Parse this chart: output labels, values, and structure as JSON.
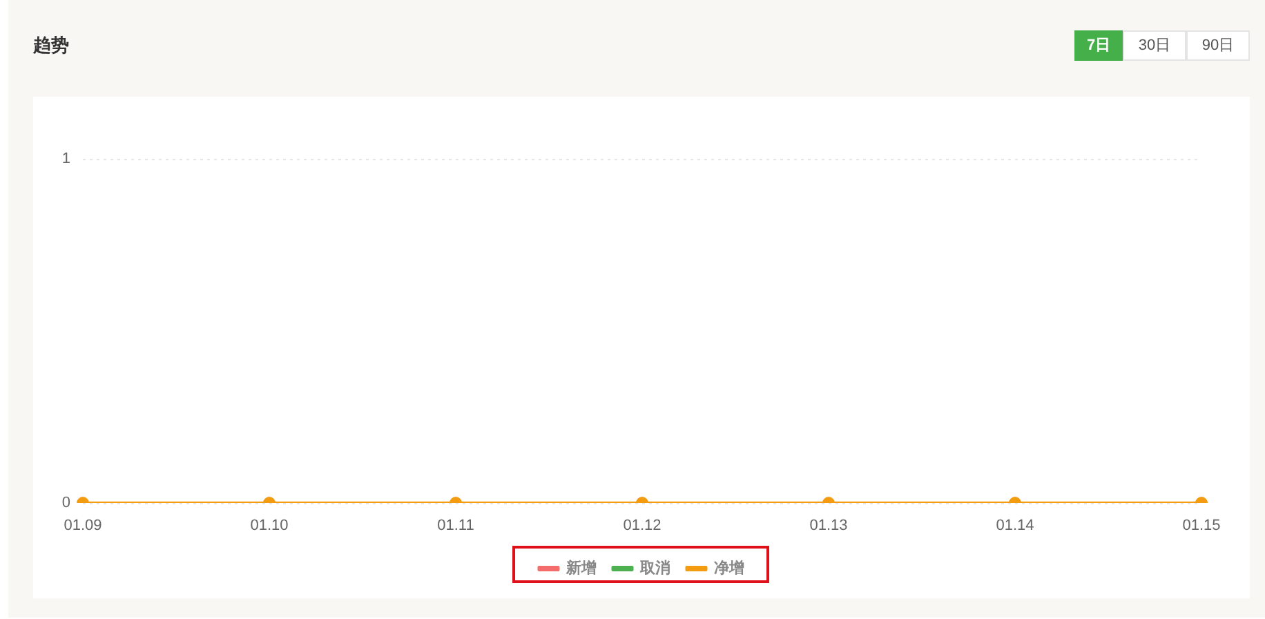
{
  "chart_data": {
    "type": "line",
    "title": "趋势",
    "annotations": [
      "7日",
      "30日",
      "90日"
    ],
    "categories": [
      "01.09",
      "01.10",
      "01.11",
      "01.12",
      "01.13",
      "01.14",
      "01.15"
    ],
    "series": [
      {
        "name": "新增",
        "color": "#f56c6c",
        "values": [
          null,
          null,
          null,
          null,
          null,
          null,
          null
        ]
      },
      {
        "name": "取消",
        "color": "#4caf50",
        "values": [
          null,
          null,
          null,
          null,
          null,
          null,
          null
        ]
      },
      {
        "name": "净增",
        "color": "#f39c12",
        "values": [
          0,
          0,
          0,
          0,
          0,
          0,
          0
        ]
      }
    ],
    "ylim": [
      0,
      1
    ],
    "yticks": [
      0,
      1
    ],
    "grid": "y",
    "legend": "bottom",
    "marker": "circle",
    "line_style": "solid"
  }
}
